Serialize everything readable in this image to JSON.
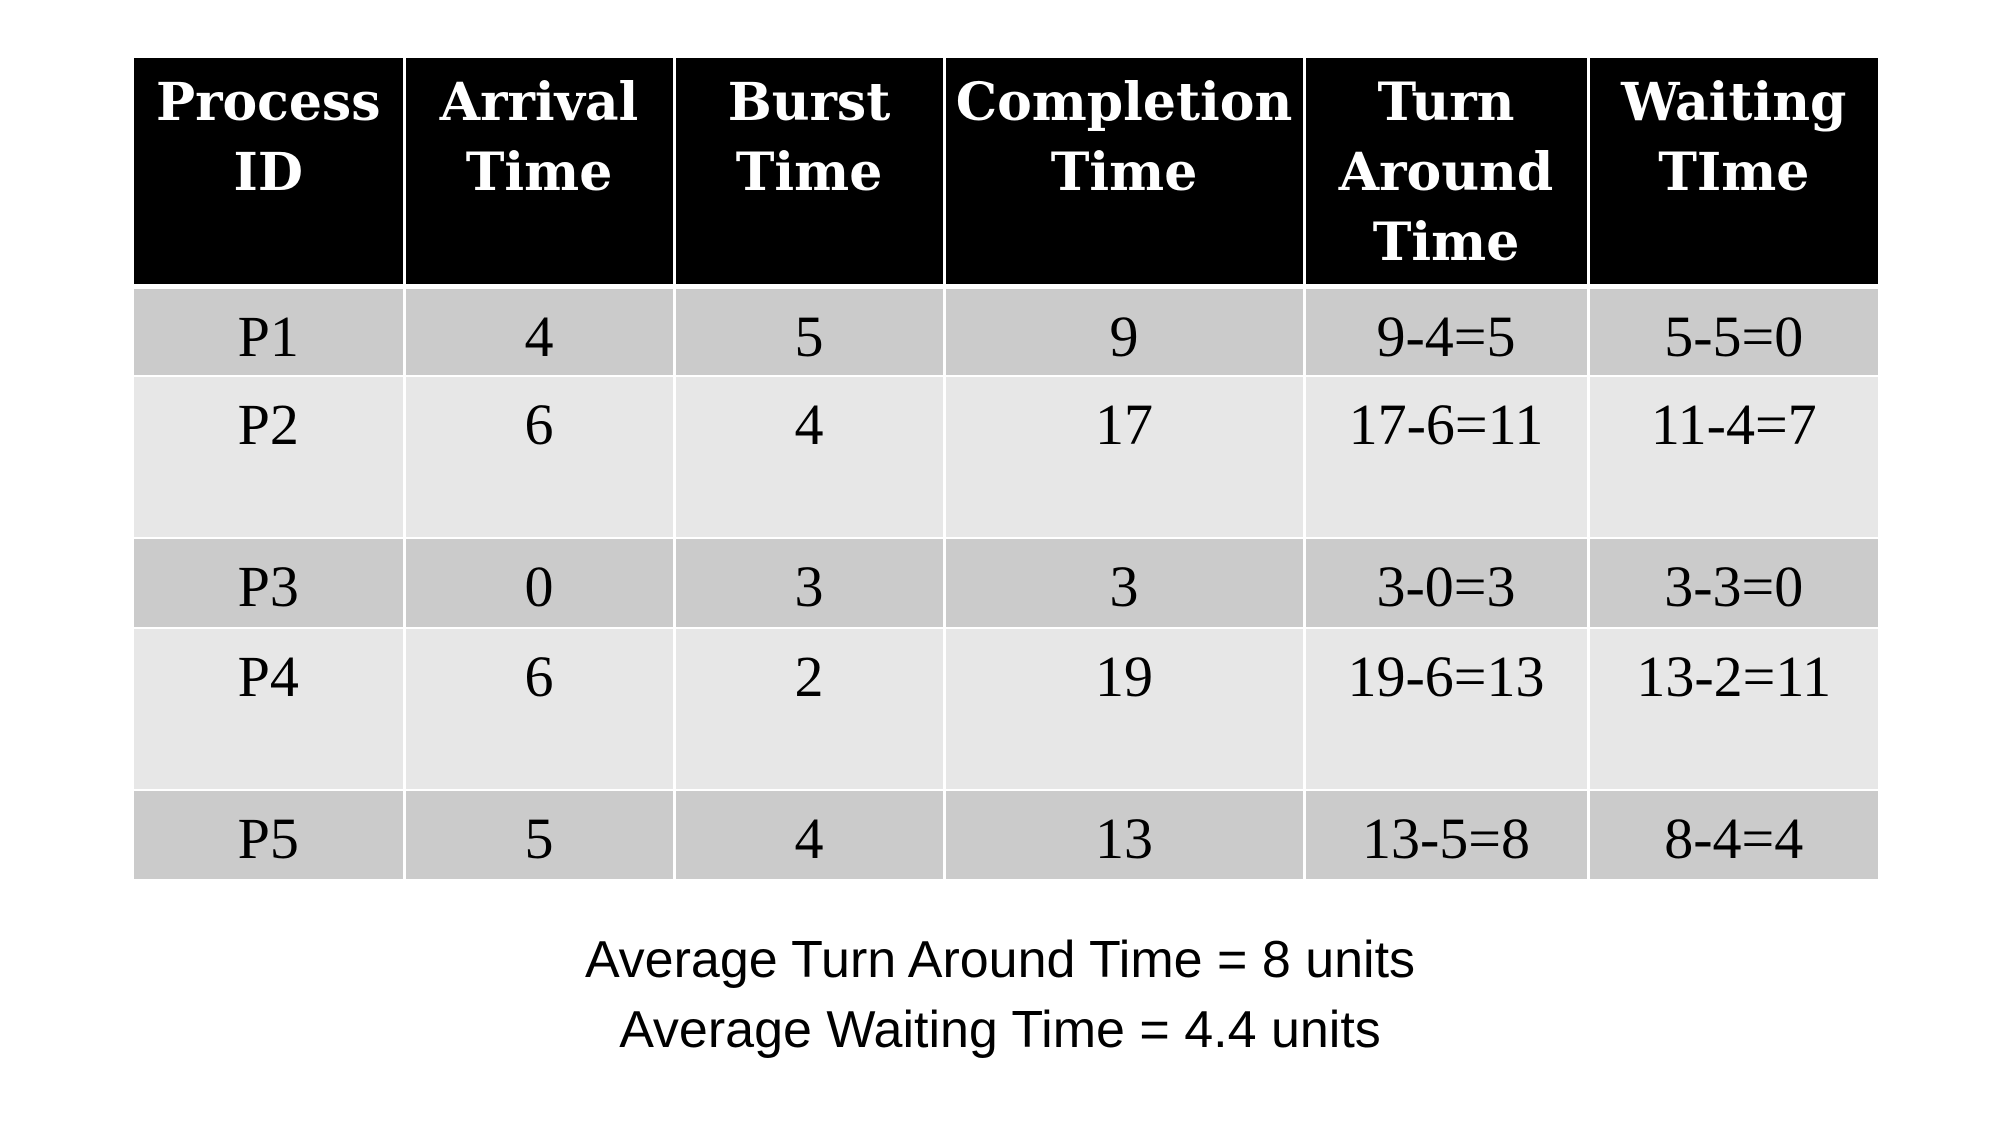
{
  "table": {
    "headers": [
      [
        "Process",
        "ID"
      ],
      [
        "Arrival",
        "Time"
      ],
      [
        "Burst",
        "Time"
      ],
      [
        "Completion",
        "Time"
      ],
      [
        "Turn",
        "Around",
        "Time"
      ],
      [
        "Waiting",
        "TIme"
      ]
    ],
    "rows": [
      [
        "P1",
        "4",
        "5",
        "9",
        "9-4=5",
        "5-5=0"
      ],
      [
        "P2",
        "6",
        "4",
        "17",
        "17-6=11",
        "11-4=7"
      ],
      [
        "P3",
        "0",
        "3",
        "3",
        "3-0=3",
        "3-3=0"
      ],
      [
        "P4",
        "6",
        "2",
        "19",
        "19-6=13",
        "13-2=11"
      ],
      [
        "P5",
        "5",
        "4",
        "13",
        "13-5=8",
        "8-4=4"
      ]
    ]
  },
  "summary": {
    "avg_turnaround": "Average Turn Around Time = 8 units",
    "avg_waiting": "Average Waiting Time = 4.4 units"
  },
  "colors": {
    "header_bg": "#000000",
    "header_text": "#ffffff",
    "row_dark": "#cbcbcb",
    "row_light": "#e7e7e7"
  }
}
